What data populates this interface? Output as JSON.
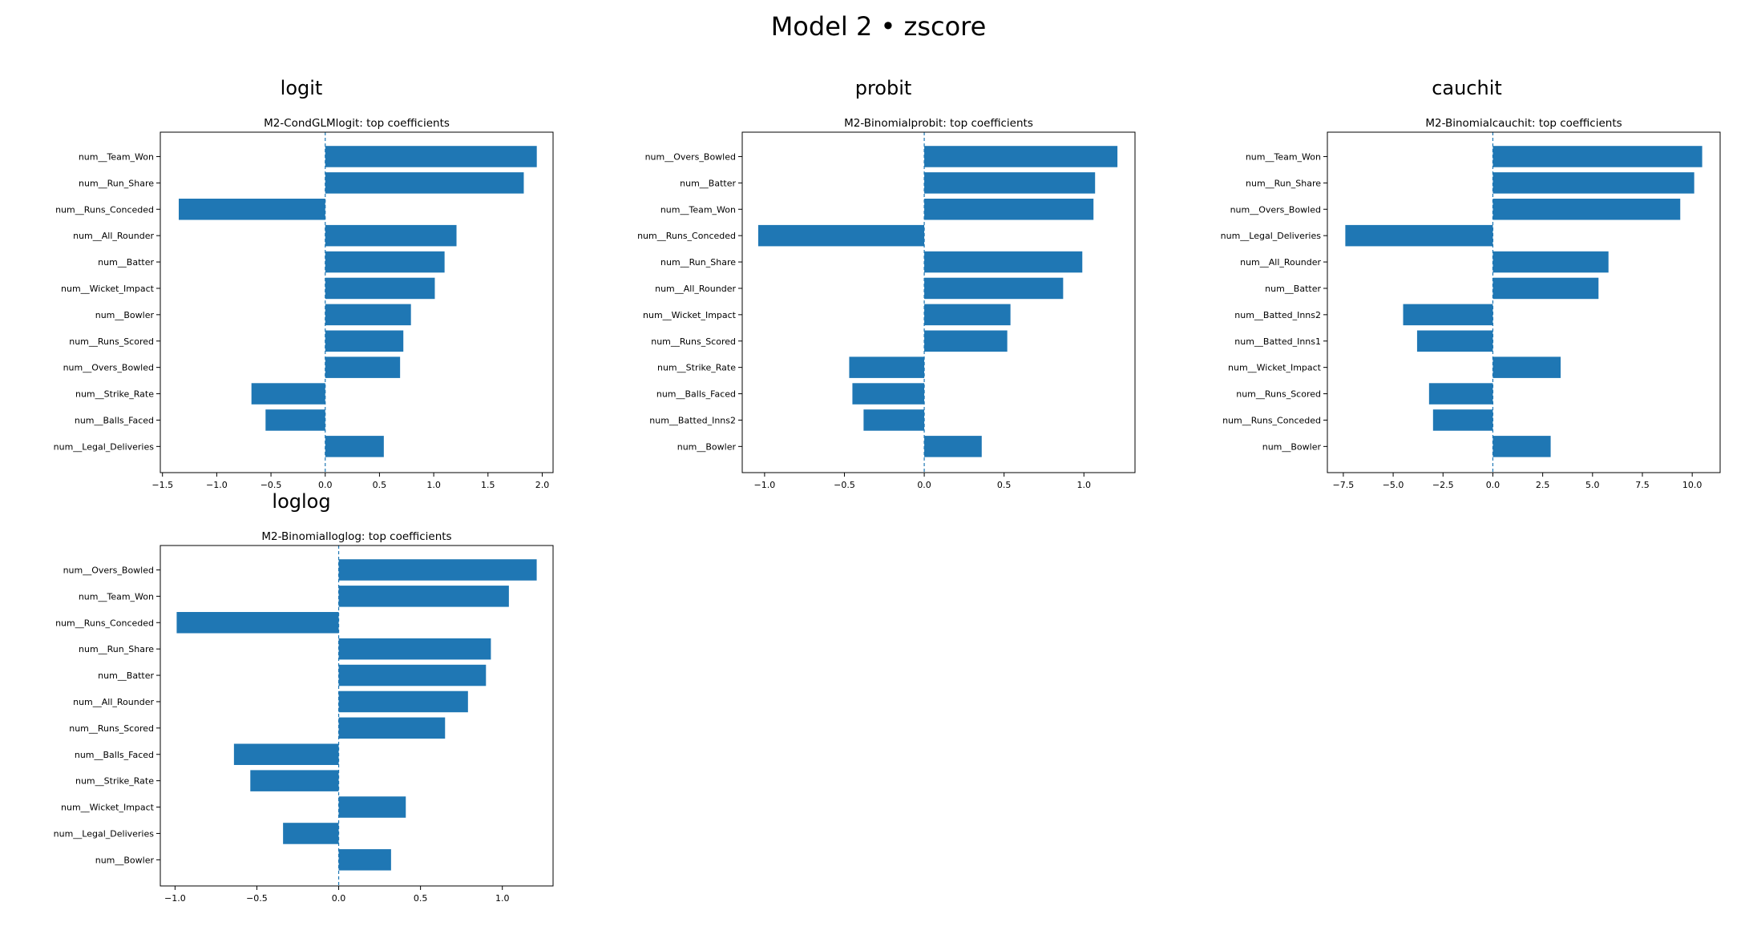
{
  "figure": {
    "title": "Model 2 • zscore"
  },
  "colors": {
    "bar": "#1f77b4",
    "zero_line": "#1f77b4"
  },
  "chart_data": [
    {
      "type": "bar",
      "orientation": "horizontal",
      "section_label": "logit",
      "title": "M2-CondGLMlogit: top coefficients",
      "xlabel": "",
      "ylabel": "",
      "xlim": [
        -1.52,
        2.1
      ],
      "xticks": [
        -1.5,
        -1.0,
        -0.5,
        0.0,
        0.5,
        1.0,
        1.5,
        2.0
      ],
      "categories": [
        "num__Team_Won",
        "num__Run_Share",
        "num__Runs_Conceded",
        "num__All_Rounder",
        "num__Batter",
        "num__Wicket_Impact",
        "num__Bowler",
        "num__Runs_Scored",
        "num__Overs_Bowled",
        "num__Strike_Rate",
        "num__Balls_Faced",
        "num__Legal_Deliveries"
      ],
      "values": [
        1.95,
        1.83,
        -1.35,
        1.21,
        1.1,
        1.01,
        0.79,
        0.72,
        0.69,
        -0.68,
        -0.55,
        0.54
      ]
    },
    {
      "type": "bar",
      "orientation": "horizontal",
      "section_label": "probit",
      "title": "M2-Binomialprobit: top coefficients",
      "xlabel": "",
      "ylabel": "",
      "xlim": [
        -1.14,
        1.32
      ],
      "xticks": [
        -1.0,
        -0.5,
        0.0,
        0.5,
        1.0
      ],
      "categories": [
        "num__Overs_Bowled",
        "num__Batter",
        "num__Team_Won",
        "num__Runs_Conceded",
        "num__Run_Share",
        "num__All_Rounder",
        "num__Wicket_Impact",
        "num__Runs_Scored",
        "num__Strike_Rate",
        "num__Balls_Faced",
        "num__Batted_Inns2",
        "num__Bowler"
      ],
      "values": [
        1.21,
        1.07,
        1.06,
        -1.04,
        0.99,
        0.87,
        0.54,
        0.52,
        -0.47,
        -0.45,
        -0.38,
        0.36
      ]
    },
    {
      "type": "bar",
      "orientation": "horizontal",
      "section_label": "cauchit",
      "title": "M2-Binomialcauchit: top coefficients",
      "xlabel": "",
      "ylabel": "",
      "xlim": [
        -8.3,
        11.4
      ],
      "xticks": [
        -7.5,
        -5.0,
        -2.5,
        0.0,
        2.5,
        5.0,
        7.5,
        10.0
      ],
      "categories": [
        "num__Team_Won",
        "num__Run_Share",
        "num__Overs_Bowled",
        "num__Legal_Deliveries",
        "num__All_Rounder",
        "num__Batter",
        "num__Batted_Inns2",
        "num__Batted_Inns1",
        "num__Wicket_Impact",
        "num__Runs_Scored",
        "num__Runs_Conceded",
        "num__Bowler"
      ],
      "values": [
        10.5,
        10.1,
        9.4,
        -7.4,
        5.8,
        5.3,
        -4.5,
        -3.8,
        3.4,
        -3.2,
        -3.0,
        2.9
      ]
    },
    {
      "type": "bar",
      "orientation": "horizontal",
      "section_label": "loglog",
      "title": "M2-Binomialloglog: top coefficients",
      "xlabel": "",
      "ylabel": "",
      "xlim": [
        -1.09,
        1.31
      ],
      "xticks": [
        -1.0,
        -0.5,
        0.0,
        0.5,
        1.0
      ],
      "categories": [
        "num__Overs_Bowled",
        "num__Team_Won",
        "num__Runs_Conceded",
        "num__Run_Share",
        "num__Batter",
        "num__All_Rounder",
        "num__Runs_Scored",
        "num__Balls_Faced",
        "num__Strike_Rate",
        "num__Wicket_Impact",
        "num__Legal_Deliveries",
        "num__Bowler"
      ],
      "values": [
        1.21,
        1.04,
        -0.99,
        0.93,
        0.9,
        0.79,
        0.65,
        -0.64,
        -0.54,
        0.41,
        -0.34,
        0.32
      ]
    }
  ]
}
